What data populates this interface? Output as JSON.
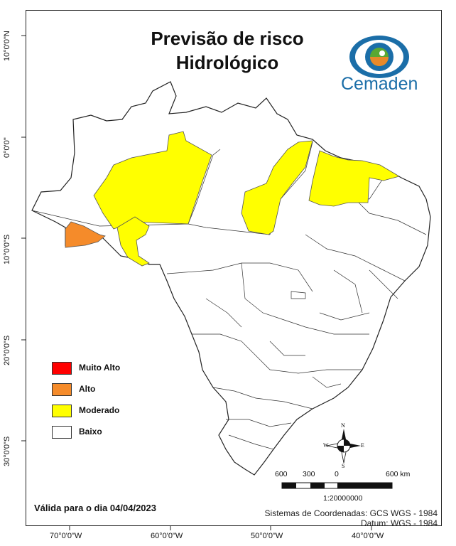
{
  "title": {
    "line1": "Previsão de risco",
    "line2": "Hidrológico"
  },
  "logo": {
    "text": "Cemaden",
    "colors": {
      "blue": "#1b6ea8",
      "green": "#5aa832",
      "orange": "#e8892a"
    }
  },
  "latitude_labels": [
    "10°0'0\"N",
    "0°0'0\"",
    "10°0'0\"S",
    "20°0'0\"S",
    "30°0'0\"S"
  ],
  "longitude_labels": [
    "70°0'0\"W",
    "60°0'0\"W",
    "50°0'0\"W",
    "40°0'0\"W"
  ],
  "legend": [
    {
      "label": "Muito Alto",
      "color": "#ff0000"
    },
    {
      "label": "Alto",
      "color": "#f58b2a"
    },
    {
      "label": "Moderado",
      "color": "#ffff00"
    },
    {
      "label": "Baixo",
      "color": "#ffffff"
    }
  ],
  "validity": "Válida para o dia 04/04/2023",
  "coordinate_system": {
    "line1": "Sistemas de Coordenadas: GCS WGS - 1984",
    "line2": "Datum: WGS - 1984"
  },
  "scale": {
    "labels": [
      "600",
      "300",
      "0",
      "600 km"
    ],
    "ratio": "1:20000000"
  },
  "north_arrow": {
    "n": "N",
    "s": "S",
    "e": "E",
    "w": "W"
  }
}
